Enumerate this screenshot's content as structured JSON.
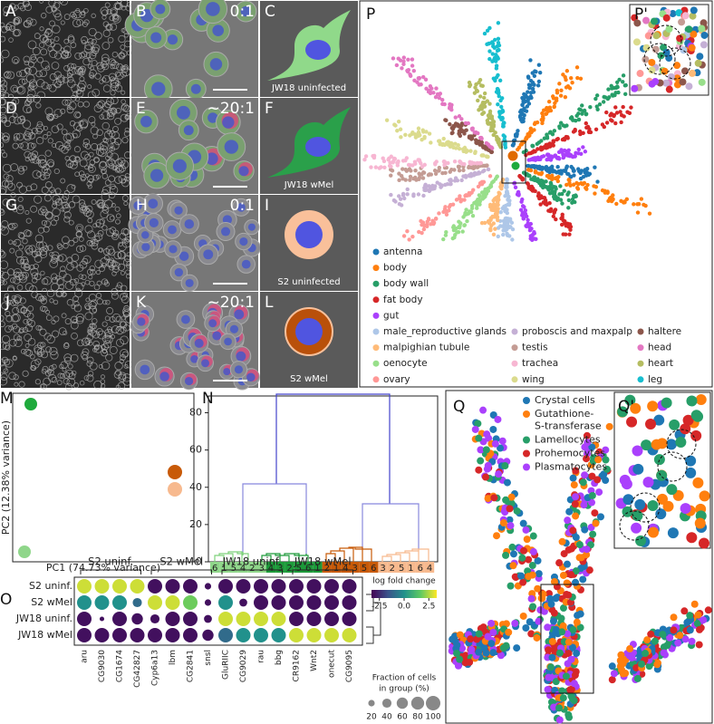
{
  "micrographs": {
    "labels": [
      "A",
      "B",
      "C",
      "D",
      "E",
      "F",
      "G",
      "H",
      "I",
      "J",
      "K",
      "L"
    ],
    "ratios": [
      "0:1",
      "~20:1",
      "0:1",
      "~20:1"
    ],
    "captions": [
      "JW18 uninfected",
      "JW18 wMel",
      "S2 uninfected",
      "S2 wMel"
    ]
  },
  "atlas": {
    "label": "P",
    "inset_label": "P'",
    "legend": [
      {
        "name": "antenna",
        "color": "#1f77b4"
      },
      {
        "name": "body",
        "color": "#ff7f0e"
      },
      {
        "name": "body wall",
        "color": "#279e68"
      },
      {
        "name": "fat body",
        "color": "#d62728"
      },
      {
        "name": "gut",
        "color": "#aa40fc"
      },
      {
        "name": "male_reproductive glands",
        "color": "#aec7e8"
      },
      {
        "name": "malpighian tubule",
        "color": "#ffbb78"
      },
      {
        "name": "oenocyte",
        "color": "#98df8a"
      },
      {
        "name": "ovary",
        "color": "#ff9896"
      },
      {
        "name": "proboscis and maxpalp",
        "color": "#c5b0d5"
      },
      {
        "name": "testis",
        "color": "#c49c94"
      },
      {
        "name": "trachea",
        "color": "#f7b6d2"
      },
      {
        "name": "wing",
        "color": "#dbdb8d"
      },
      {
        "name": "haltere",
        "color": "#8c564b"
      },
      {
        "name": "head",
        "color": "#e377c2"
      },
      {
        "name": "heart",
        "color": "#b5bd61"
      },
      {
        "name": "leg",
        "color": "#17becf"
      }
    ]
  },
  "pca": {
    "label": "M",
    "xlabel": "PC1 (74.73% variance)",
    "ylabel": "PC2 (12.38% variance)"
  },
  "dendrogram": {
    "label": "N",
    "ylim": [
      0,
      89
    ],
    "yticks": [
      0,
      20,
      40,
      60,
      80
    ],
    "leaves": [
      "6",
      "1",
      "5",
      "4",
      "2",
      "3",
      "4",
      "3",
      "2",
      "5",
      "6",
      "1",
      "2",
      "1",
      "4",
      "3",
      "5",
      "6",
      "3",
      "2",
      "5",
      "1",
      "6",
      "4"
    ]
  },
  "dotplot": {
    "label": "O",
    "groups": [
      "S2 uninf.",
      "S2 wMel",
      "JW18 uninf.",
      "JW18 wMel"
    ],
    "rows": [
      "S2 uninf.",
      "S2 wMel",
      "JW18 uninf.",
      "JW18 wMel"
    ],
    "genes": [
      "aru",
      "CG9030",
      "CG1674",
      "CG42827",
      "Cyp6a13",
      "lbm",
      "CG2841",
      "snsl",
      "GluRIIC",
      "CG9029",
      "rau",
      "bbg",
      "CR9162",
      "Wnt2",
      "onecut",
      "CG9095"
    ],
    "lfc": [
      [
        2.8,
        2.8,
        2.8,
        2.8,
        -3,
        -3,
        -3,
        -3,
        -3,
        -3,
        -3,
        -3,
        -3,
        -3,
        -3,
        -3
      ],
      [
        0,
        0,
        0,
        -1,
        2.8,
        2.8,
        1.8,
        -3,
        0,
        -3,
        -3,
        -3,
        -3,
        -3,
        -3,
        -3
      ],
      [
        -3,
        -3,
        -3,
        -3,
        -3,
        -3,
        -3,
        -3,
        2.8,
        2.8,
        2.8,
        2.8,
        -3,
        -3,
        -3,
        -3
      ],
      [
        -3,
        -3,
        -3,
        -3,
        -3,
        -3,
        -3,
        -3,
        -1,
        0,
        0,
        0,
        2.8,
        2.8,
        2.8,
        2.8
      ]
    ],
    "fraction": [
      [
        100,
        100,
        100,
        100,
        100,
        100,
        100,
        20,
        100,
        100,
        100,
        100,
        100,
        100,
        100,
        100
      ],
      [
        100,
        100,
        100,
        40,
        100,
        100,
        100,
        20,
        100,
        30,
        100,
        100,
        100,
        100,
        100,
        100
      ],
      [
        100,
        10,
        100,
        60,
        40,
        100,
        100,
        30,
        100,
        100,
        100,
        100,
        100,
        100,
        100,
        100
      ],
      [
        100,
        100,
        100,
        100,
        100,
        100,
        100,
        60,
        100,
        100,
        100,
        100,
        100,
        100,
        100,
        100
      ]
    ],
    "color_label": "log fold change",
    "color_range": [
      -3.3,
      3.3
    ],
    "color_ticks": [
      -2.5,
      {
        "value": 0,
        "label": "0.0"
      },
      2.5
    ],
    "size_label": [
      "Fraction of cells",
      "in group (%)"
    ],
    "size_ticks": [
      20,
      40,
      60,
      80,
      100
    ]
  },
  "hemocytes": {
    "label": "Q",
    "inset_label": "Q'",
    "legend": [
      {
        "name": [
          "Crystal cells"
        ],
        "color": "#1f77b4"
      },
      {
        "name": [
          "Gutathione-",
          "S-transferase"
        ],
        "color": "#ff7f0e"
      },
      {
        "name": [
          "Lamellocytes"
        ],
        "color": "#279e68"
      },
      {
        "name": [
          "Prohemocytes"
        ],
        "color": "#d62728"
      },
      {
        "name": [
          "Plasmatocytes"
        ],
        "color": "#aa40fc"
      }
    ]
  }
}
